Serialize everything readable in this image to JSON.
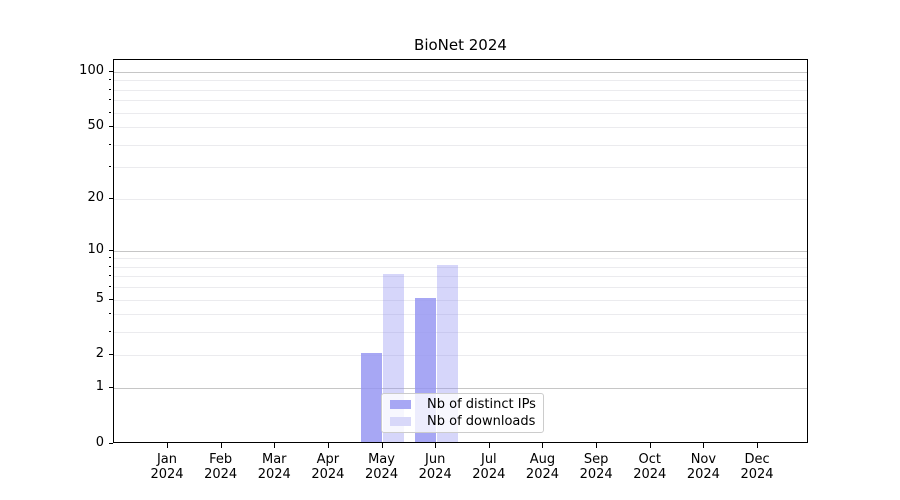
{
  "figure": {
    "background": "#ffffff"
  },
  "chart_data": {
    "type": "bar",
    "title": "BioNet 2024",
    "categories": [
      "Jan 2024",
      "Feb 2024",
      "Mar 2024",
      "Apr 2024",
      "May 2024",
      "Jun 2024",
      "Jul 2024",
      "Aug 2024",
      "Sep 2024",
      "Oct 2024",
      "Nov 2024",
      "Dec 2024"
    ],
    "series": [
      {
        "name": "Nb of distinct IPs",
        "values": [
          0,
          0,
          0,
          0,
          2,
          5,
          0,
          0,
          0,
          0,
          0,
          0
        ],
        "color": "#a7a7f4",
        "fill": "rgba(148,148,242,0.82)"
      },
      {
        "name": "Nb of downloads",
        "values": [
          0,
          0,
          0,
          0,
          7,
          8,
          0,
          0,
          0,
          0,
          0,
          0
        ],
        "color": "#d8d8f9",
        "fill": "rgba(148,148,242,0.38)"
      }
    ],
    "xlabel": "",
    "ylabel": "",
    "yscale": "log1p",
    "ylim": [
      0,
      119
    ],
    "yticks_labeled": [
      0,
      1,
      2,
      5,
      10,
      20,
      50,
      100
    ],
    "yticks_major_grid": [
      1,
      10,
      100
    ],
    "yticks_minor": [
      3,
      4,
      6,
      7,
      8,
      9,
      30,
      40,
      60,
      70,
      80,
      90
    ],
    "grid": "both",
    "legend_position": "inside lower center"
  },
  "colors": {
    "axis": "#000000",
    "text": "#000000",
    "major_grid": "#c6c6c6",
    "minor_grid": "#ebebee",
    "legend_border": "#cccccc",
    "legend_background": "rgba(255,255,255,0.8)"
  }
}
